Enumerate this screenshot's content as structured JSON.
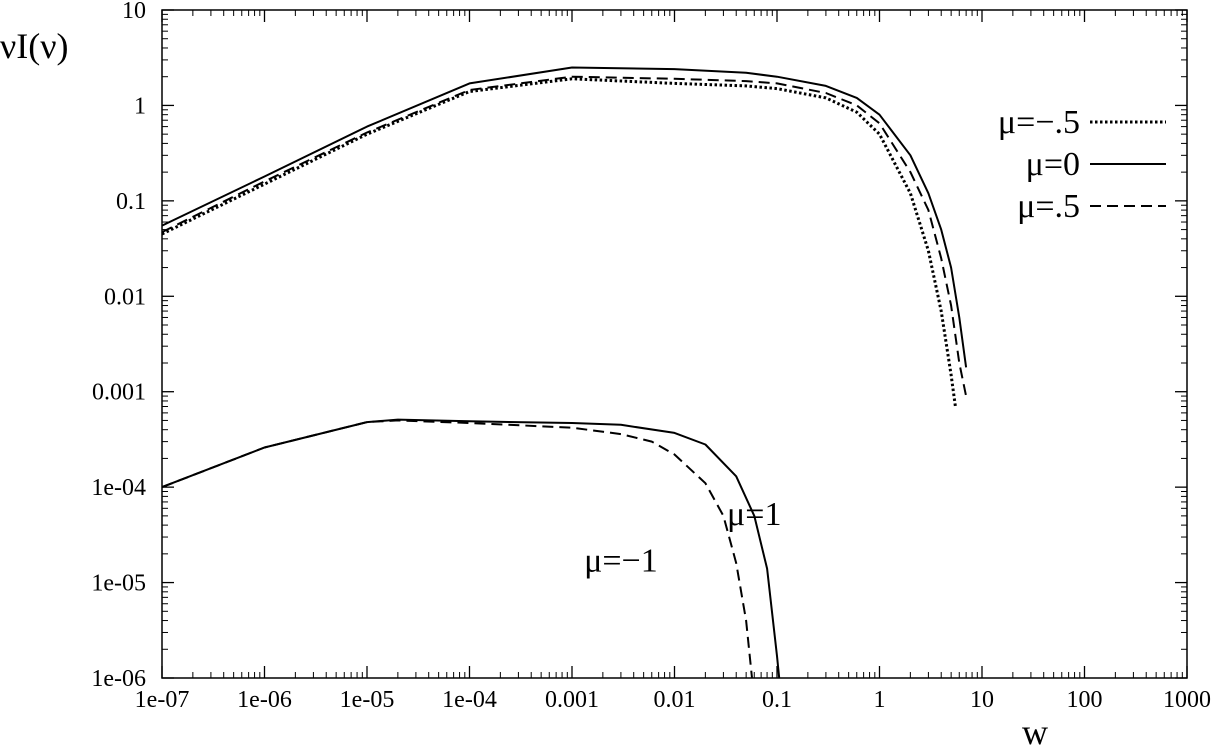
{
  "chart_data": {
    "type": "line",
    "title": "",
    "xlabel": "w",
    "ylabel": "νI(ν)",
    "x_scale": "log",
    "y_scale": "log",
    "xlim": [
      1e-07,
      1000
    ],
    "ylim": [
      1e-06,
      10
    ],
    "grid": false,
    "legend_position": "top-right",
    "x_ticks": [
      {
        "value": 1e-07,
        "label": "1e-07"
      },
      {
        "value": 1e-06,
        "label": "1e-06"
      },
      {
        "value": 1e-05,
        "label": "1e-05"
      },
      {
        "value": 0.0001,
        "label": "1e-04"
      },
      {
        "value": 0.001,
        "label": "0.001"
      },
      {
        "value": 0.01,
        "label": "0.01"
      },
      {
        "value": 0.1,
        "label": "0.1"
      },
      {
        "value": 1,
        "label": "1"
      },
      {
        "value": 10,
        "label": "10"
      },
      {
        "value": 100,
        "label": "100"
      },
      {
        "value": 1000,
        "label": "1000"
      }
    ],
    "y_ticks": [
      {
        "value": 1e-06,
        "label": "1e-06"
      },
      {
        "value": 1e-05,
        "label": "1e-05"
      },
      {
        "value": 0.0001,
        "label": "1e-04"
      },
      {
        "value": 0.001,
        "label": "0.001"
      },
      {
        "value": 0.01,
        "label": "0.01"
      },
      {
        "value": 0.1,
        "label": "0.1"
      },
      {
        "value": 1,
        "label": "1"
      },
      {
        "value": 10,
        "label": "10"
      }
    ],
    "legend": [
      {
        "label": "μ=−.5",
        "style": "dotted"
      },
      {
        "label": "μ=0",
        "style": "solid"
      },
      {
        "label": "μ=.5",
        "style": "dashed"
      }
    ],
    "annotations": [
      {
        "text": "μ=−1",
        "x": 0.003,
        "y": 1.3e-05
      },
      {
        "text": "μ=1",
        "x": 0.06,
        "y": 4e-05
      }
    ],
    "series": [
      {
        "style": "dotted",
        "x": [
          1e-07,
          1e-06,
          1e-05,
          0.0001,
          0.001,
          0.01,
          0.05,
          0.1,
          0.3,
          0.6,
          1,
          2,
          3,
          4,
          5,
          5.5
        ],
        "y": [
          0.045,
          0.15,
          0.5,
          1.4,
          1.9,
          1.7,
          1.6,
          1.5,
          1.2,
          0.85,
          0.5,
          0.12,
          0.03,
          0.007,
          0.0015,
          0.0007
        ]
      },
      {
        "style": "solid",
        "x": [
          1e-07,
          1e-06,
          1e-05,
          0.0001,
          0.001,
          0.01,
          0.05,
          0.1,
          0.3,
          0.6,
          1,
          2,
          3,
          4,
          5,
          6,
          7
        ],
        "y": [
          0.055,
          0.18,
          0.6,
          1.7,
          2.5,
          2.4,
          2.2,
          2.0,
          1.6,
          1.2,
          0.8,
          0.3,
          0.12,
          0.05,
          0.02,
          0.006,
          0.0018
        ]
      },
      {
        "style": "dashed",
        "x": [
          1e-07,
          1e-06,
          1e-05,
          0.0001,
          0.001,
          0.01,
          0.05,
          0.1,
          0.3,
          0.6,
          1,
          2,
          3,
          4,
          5,
          6,
          7
        ],
        "y": [
          0.047,
          0.16,
          0.52,
          1.45,
          2.0,
          1.9,
          1.8,
          1.7,
          1.35,
          1.0,
          0.65,
          0.2,
          0.08,
          0.025,
          0.008,
          0.002,
          0.0009
        ]
      },
      {
        "style": "dashed",
        "x": [
          1e-07,
          1e-06,
          1e-05,
          2e-05,
          0.0001,
          0.001,
          0.003,
          0.006,
          0.01,
          0.02,
          0.03,
          0.04,
          0.05,
          0.057
        ],
        "y": [
          0.0001,
          0.00026,
          0.00048,
          0.0005,
          0.00047,
          0.00042,
          0.00036,
          0.0003,
          0.00022,
          0.00011,
          5e-05,
          1.6e-05,
          4e-06,
          1e-06
        ]
      },
      {
        "style": "solid",
        "x": [
          1e-07,
          1e-06,
          1e-05,
          2e-05,
          0.0001,
          0.001,
          0.003,
          0.01,
          0.02,
          0.04,
          0.06,
          0.08,
          0.1,
          0.105
        ],
        "y": [
          0.0001,
          0.00026,
          0.00048,
          0.00051,
          0.00049,
          0.00047,
          0.00045,
          0.00037,
          0.00028,
          0.00013,
          5e-05,
          1.4e-05,
          1.7e-06,
          1e-06
        ]
      }
    ]
  }
}
